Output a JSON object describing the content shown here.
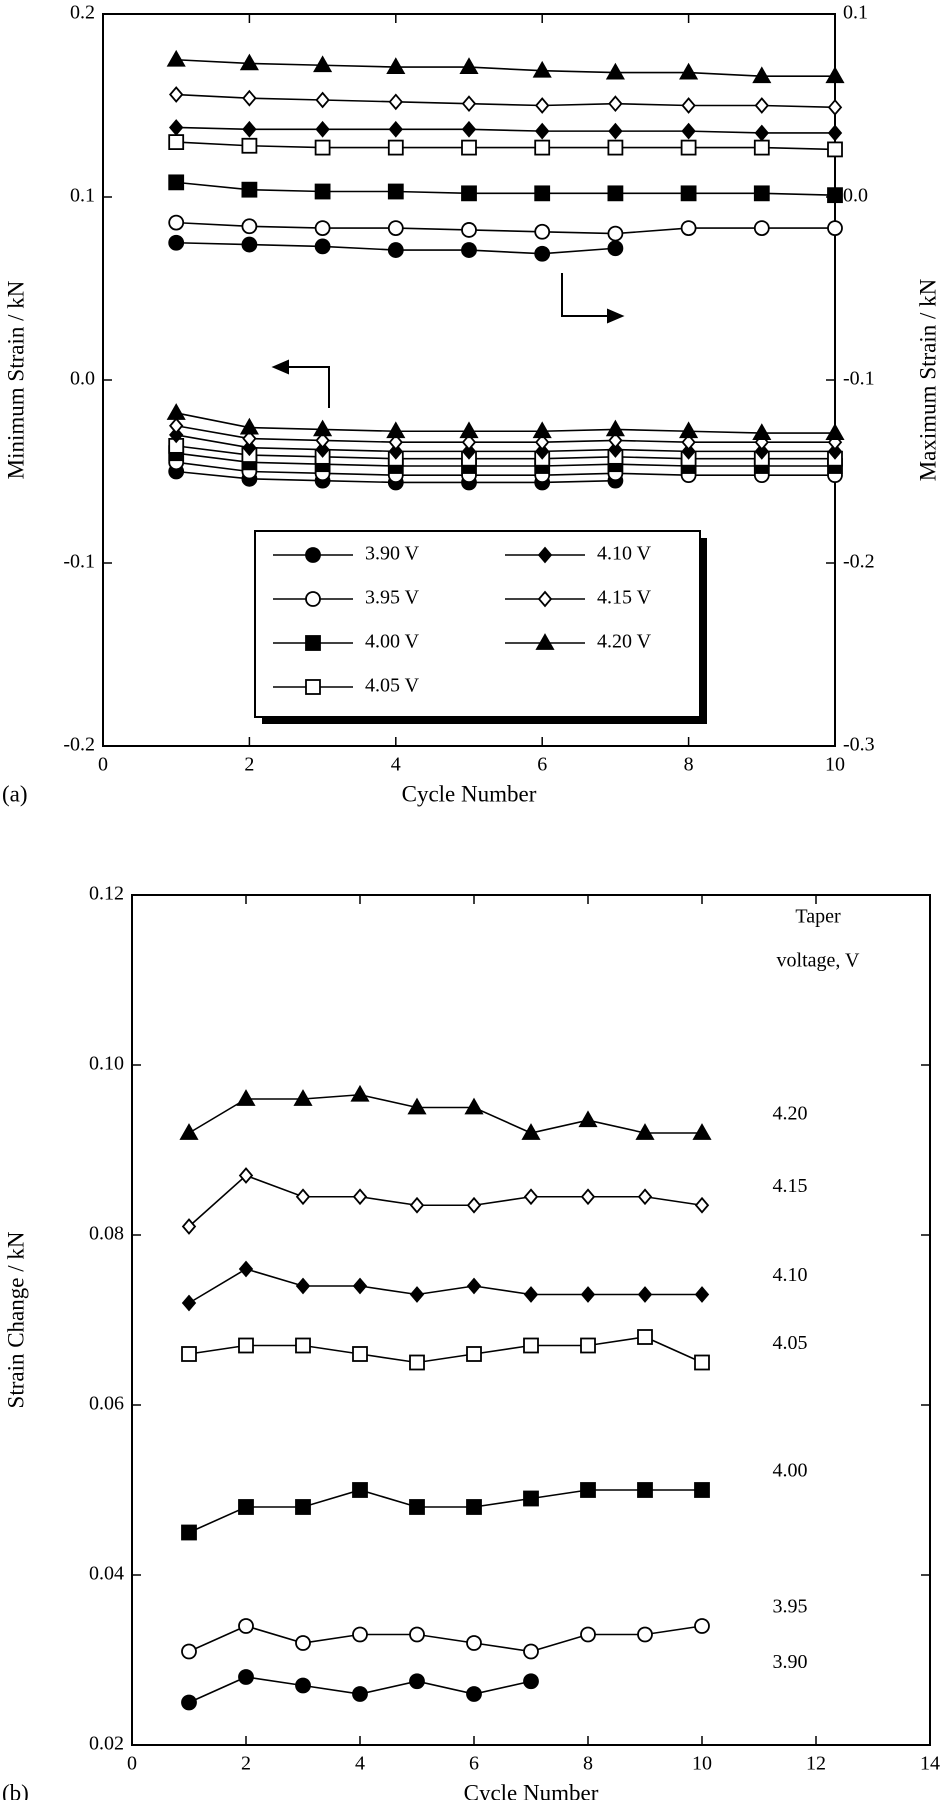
{
  "chart_data": [
    {
      "type": "line",
      "panel_label": "(a)",
      "xlabel": "Cycle Number",
      "ylabel": "Minimum Strain / kN",
      "y2label": "Maximum Strain / kN",
      "x": [
        1,
        2,
        3,
        4,
        5,
        6,
        7,
        8,
        9,
        10
      ],
      "xlim": [
        0,
        10
      ],
      "xticks": [
        0,
        2,
        4,
        6,
        8,
        10
      ],
      "ylim": [
        -0.2,
        0.2
      ],
      "yticks": [
        -0.2,
        -0.1,
        {
          "value": 0,
          "label": "0.0"
        },
        0.1,
        0.2
      ],
      "y2lim": [
        -0.3,
        0.1
      ],
      "y2ticks": [
        -0.3,
        -0.2,
        -0.1,
        {
          "value": 0,
          "label": "0.0"
        },
        0.1
      ],
      "legend": "bottom center",
      "series": [
        {
          "name": "3.90 V",
          "color": "#000000",
          "marker": "circle",
          "filled": true,
          "values": [
            -0.05,
            -0.054,
            -0.055,
            -0.056,
            -0.056,
            -0.056,
            -0.055,
            null,
            null,
            null
          ],
          "y2_values": [
            -0.025,
            -0.026,
            -0.027,
            -0.029,
            -0.029,
            -0.031,
            -0.028,
            null,
            null,
            null
          ]
        },
        {
          "name": "3.95 V",
          "color": "#000000",
          "marker": "circle",
          "filled": false,
          "values": [
            -0.045,
            -0.05,
            -0.051,
            -0.052,
            -0.052,
            -0.052,
            -0.051,
            -0.052,
            -0.052,
            -0.052
          ],
          "y2_values": [
            -0.014,
            -0.016,
            -0.017,
            -0.017,
            -0.018,
            -0.019,
            -0.02,
            -0.017,
            -0.017,
            -0.017
          ]
        },
        {
          "name": "4.00 V",
          "color": "#000000",
          "marker": "square",
          "filled": true,
          "values": [
            -0.04,
            -0.045,
            -0.046,
            -0.047,
            -0.047,
            -0.047,
            -0.046,
            -0.047,
            -0.047,
            -0.047
          ],
          "y2_values": [
            0.008,
            0.004,
            0.003,
            0.003,
            0.002,
            0.002,
            0.002,
            0.002,
            0.002,
            0.001
          ]
        },
        {
          "name": "4.05 V",
          "color": "#000000",
          "marker": "square",
          "filled": false,
          "values": [
            -0.036,
            -0.041,
            -0.042,
            -0.043,
            -0.043,
            -0.043,
            -0.042,
            -0.043,
            -0.043,
            -0.043
          ],
          "y2_values": [
            0.03,
            0.028,
            0.027,
            0.027,
            0.027,
            0.027,
            0.027,
            0.027,
            0.027,
            0.026
          ]
        },
        {
          "name": "4.10 V",
          "color": "#000000",
          "marker": "diamond",
          "filled": true,
          "values": [
            -0.03,
            -0.037,
            -0.038,
            -0.039,
            -0.039,
            -0.039,
            -0.038,
            -0.039,
            -0.039,
            -0.039
          ],
          "y2_values": [
            0.038,
            0.037,
            0.037,
            0.037,
            0.037,
            0.036,
            0.036,
            0.036,
            0.035,
            0.035
          ]
        },
        {
          "name": "4.15 V",
          "color": "#000000",
          "marker": "diamond",
          "filled": false,
          "values": [
            -0.025,
            -0.032,
            -0.033,
            -0.034,
            -0.034,
            -0.034,
            -0.033,
            -0.034,
            -0.034,
            -0.034
          ],
          "y2_values": [
            0.056,
            0.054,
            0.053,
            0.052,
            0.051,
            0.05,
            0.051,
            0.05,
            0.05,
            0.049
          ]
        },
        {
          "name": "4.20 V",
          "color": "#000000",
          "marker": "triangle",
          "filled": true,
          "values": [
            -0.018,
            -0.026,
            -0.027,
            -0.028,
            -0.028,
            -0.028,
            -0.027,
            -0.028,
            -0.029,
            -0.029
          ],
          "y2_values": [
            0.075,
            0.073,
            0.072,
            0.071,
            0.071,
            0.069,
            0.068,
            0.068,
            0.066,
            0.066
          ]
        }
      ]
    },
    {
      "type": "line",
      "panel_label": "(b)",
      "xlabel": "Cycle Number",
      "ylabel": "Strain Change / kN",
      "annotation": [
        "Taper",
        "voltage, V"
      ],
      "x": [
        1,
        2,
        3,
        4,
        5,
        6,
        7,
        8,
        9,
        10
      ],
      "xlim": [
        0,
        14
      ],
      "xticks": [
        0,
        2,
        4,
        6,
        8,
        10,
        12,
        14
      ],
      "ylim": [
        0.02,
        0.12
      ],
      "yticks": [
        0.02,
        0.04,
        0.06,
        0.08,
        {
          "value": 0.1,
          "label": "0.10"
        },
        0.12
      ],
      "series": [
        {
          "name": "3.90",
          "color": "#000000",
          "marker": "circle",
          "filled": true,
          "values": [
            0.025,
            0.028,
            0.027,
            0.026,
            0.0275,
            0.026,
            0.0275,
            null,
            null,
            null
          ]
        },
        {
          "name": "3.95",
          "color": "#000000",
          "marker": "circle",
          "filled": false,
          "values": [
            0.031,
            0.034,
            0.032,
            0.033,
            0.033,
            0.032,
            0.031,
            0.033,
            0.033,
            0.034
          ]
        },
        {
          "name": "4.00",
          "color": "#000000",
          "marker": "square",
          "filled": true,
          "values": [
            0.045,
            0.048,
            0.048,
            0.05,
            0.048,
            0.048,
            0.049,
            0.05,
            0.05,
            0.05
          ]
        },
        {
          "name": "4.05",
          "color": "#000000",
          "marker": "square",
          "filled": false,
          "values": [
            0.066,
            0.067,
            0.067,
            0.066,
            0.065,
            0.066,
            0.067,
            0.067,
            0.068,
            0.065
          ]
        },
        {
          "name": "4.10",
          "color": "#000000",
          "marker": "diamond",
          "filled": true,
          "values": [
            0.072,
            0.076,
            0.074,
            0.074,
            0.073,
            0.074,
            0.073,
            0.073,
            0.073,
            0.073
          ]
        },
        {
          "name": "4.15",
          "color": "#000000",
          "marker": "diamond",
          "filled": false,
          "values": [
            0.081,
            0.087,
            0.0845,
            0.0845,
            0.0835,
            0.0835,
            0.0845,
            0.0845,
            0.0845,
            0.0835
          ]
        },
        {
          "name": "4.20",
          "color": "#000000",
          "marker": "triangle",
          "filled": true,
          "values": [
            0.092,
            0.096,
            0.096,
            0.0965,
            0.095,
            0.095,
            0.092,
            0.0935,
            0.092,
            0.092
          ]
        }
      ]
    }
  ]
}
